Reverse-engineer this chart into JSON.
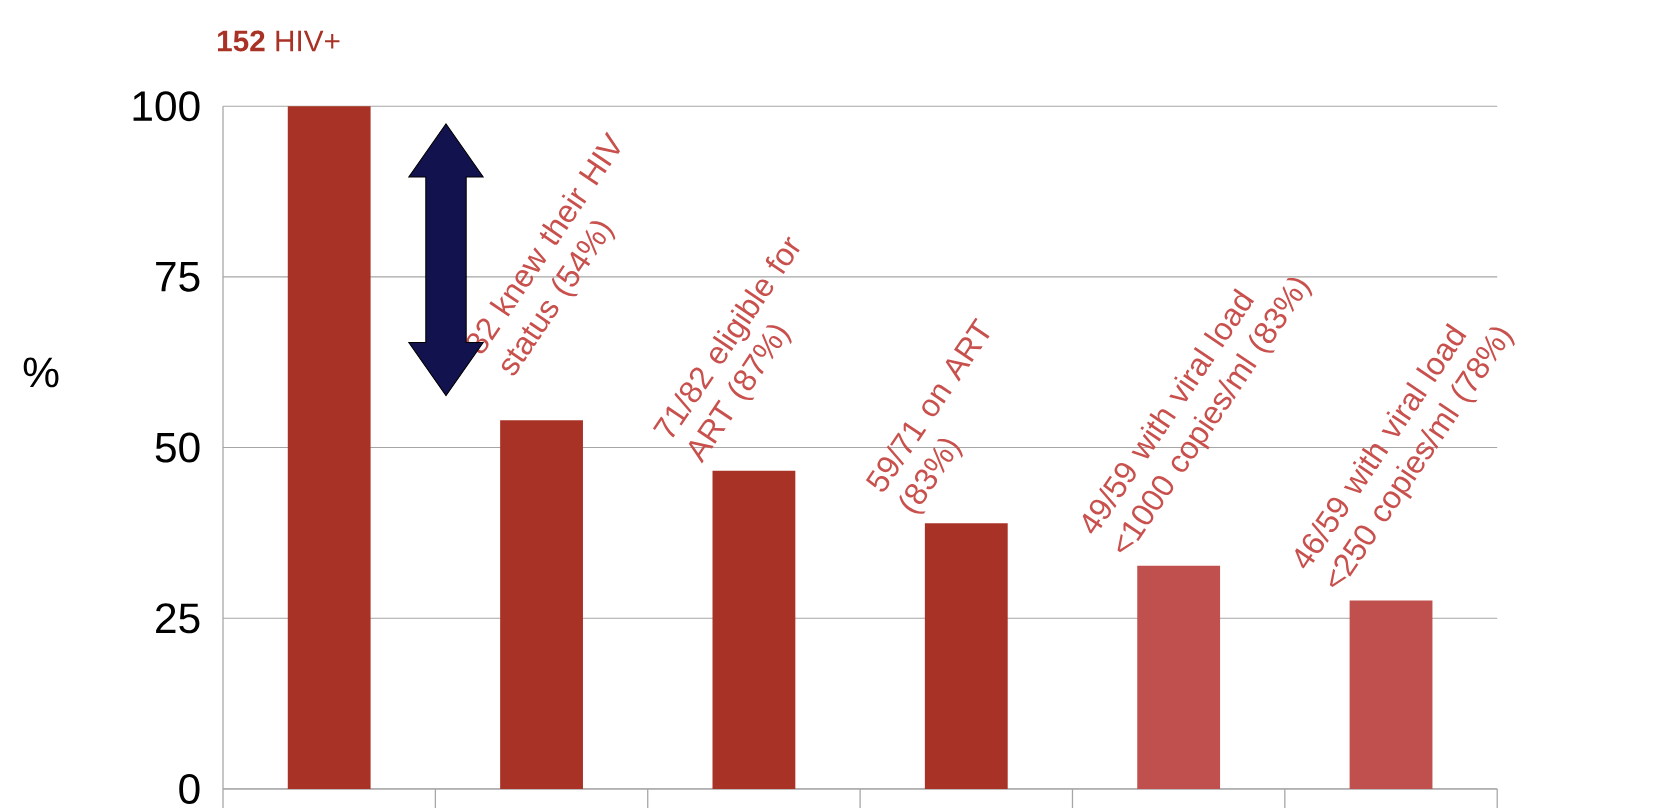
{
  "chart_data": {
    "type": "bar",
    "title": "**152** HIV+",
    "ylabel": "%",
    "categories": [
      null,
      null,
      null,
      null,
      null,
      null
    ],
    "values": [
      100,
      54,
      46.6,
      38.9,
      32.7,
      27.6
    ],
    "colors": [
      "#a93226",
      "#a93226",
      "#a93226",
      "#a93226",
      "#c0504d",
      "#c0504d"
    ],
    "ylim": [
      0,
      100
    ],
    "yticks": [
      0,
      25,
      50,
      75,
      100
    ],
    "grid": "y",
    "annotations": [
      "82 knew their HIV status (54%)",
      "71/82  eligible for ART (87%)",
      "59/71 on ART (83%)",
      "49/59 with viral load <1000 copies/ml (83%)",
      "46/59 with viral load <250 copies/ml (78%)"
    ]
  }
}
